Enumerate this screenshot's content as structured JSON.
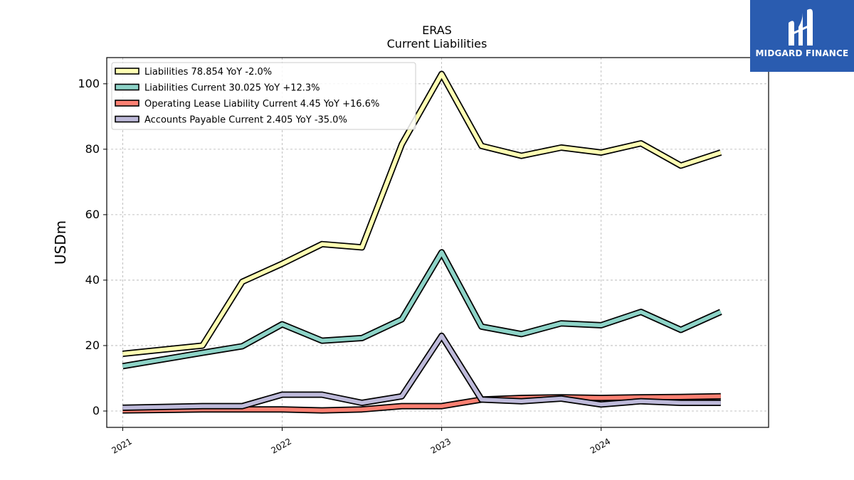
{
  "chart_data": {
    "type": "line",
    "title": "ERAS",
    "subtitle": "Current  Liabilities",
    "ylabel": "USDm",
    "xlabel": "",
    "ylim": [
      -5,
      108
    ],
    "xlim": [
      2020.9,
      2025.05
    ],
    "yticks": [
      0,
      20,
      40,
      60,
      80,
      100
    ],
    "xticks": [
      {
        "value": 2021.0,
        "label": "2021"
      },
      {
        "value": 2022.0,
        "label": "2022"
      },
      {
        "value": 2023.0,
        "label": "2023"
      },
      {
        "value": 2024.0,
        "label": "2024"
      }
    ],
    "grid": true,
    "legend_position": "top-left",
    "x": [
      2021.0,
      2021.5,
      2021.75,
      2022.0,
      2022.25,
      2022.5,
      2022.75,
      2023.0,
      2023.25,
      2023.5,
      2023.75,
      2024.0,
      2024.25,
      2024.5,
      2024.75
    ],
    "series": [
      {
        "name": "Liabilities",
        "legend": "Liabilities  78.854 YoY -2.0%",
        "color": "#ffffb3",
        "values": [
          17.5,
          20.0,
          39.5,
          45.0,
          51.0,
          50.0,
          81.5,
          103.0,
          81.0,
          78.0,
          80.5,
          79.0,
          81.8,
          75.0,
          79.0
        ]
      },
      {
        "name": "Liabilities Current",
        "legend": "Liabilities Current  30.025 YoY +12.3%",
        "color": "#8dd3c7",
        "values": [
          13.7,
          17.8,
          19.8,
          26.5,
          21.5,
          22.3,
          28.0,
          48.5,
          25.8,
          23.5,
          26.8,
          26.2,
          30.3,
          24.8,
          30.3
        ]
      },
      {
        "name": "Operating Lease Liability Current",
        "legend": "Operating Lease Liability Current  4.45 YoY +16.6%",
        "color": "#fb8072",
        "values": [
          0.2,
          0.5,
          0.5,
          0.5,
          0.2,
          0.5,
          1.5,
          1.5,
          3.5,
          4.0,
          4.2,
          4.0,
          4.2,
          4.3,
          4.5
        ]
      },
      {
        "name": "Accounts Payable Current",
        "legend": "Accounts Payable Current  2.405 YoY -35.0%",
        "color": "#bebada",
        "values": [
          1.0,
          1.5,
          1.5,
          5.0,
          5.0,
          2.5,
          4.5,
          23.0,
          3.5,
          3.0,
          3.8,
          2.0,
          3.0,
          2.5,
          2.5
        ]
      }
    ]
  },
  "logo": {
    "text": "MIDGARD FINANCE",
    "background": "#2a5cb0"
  }
}
